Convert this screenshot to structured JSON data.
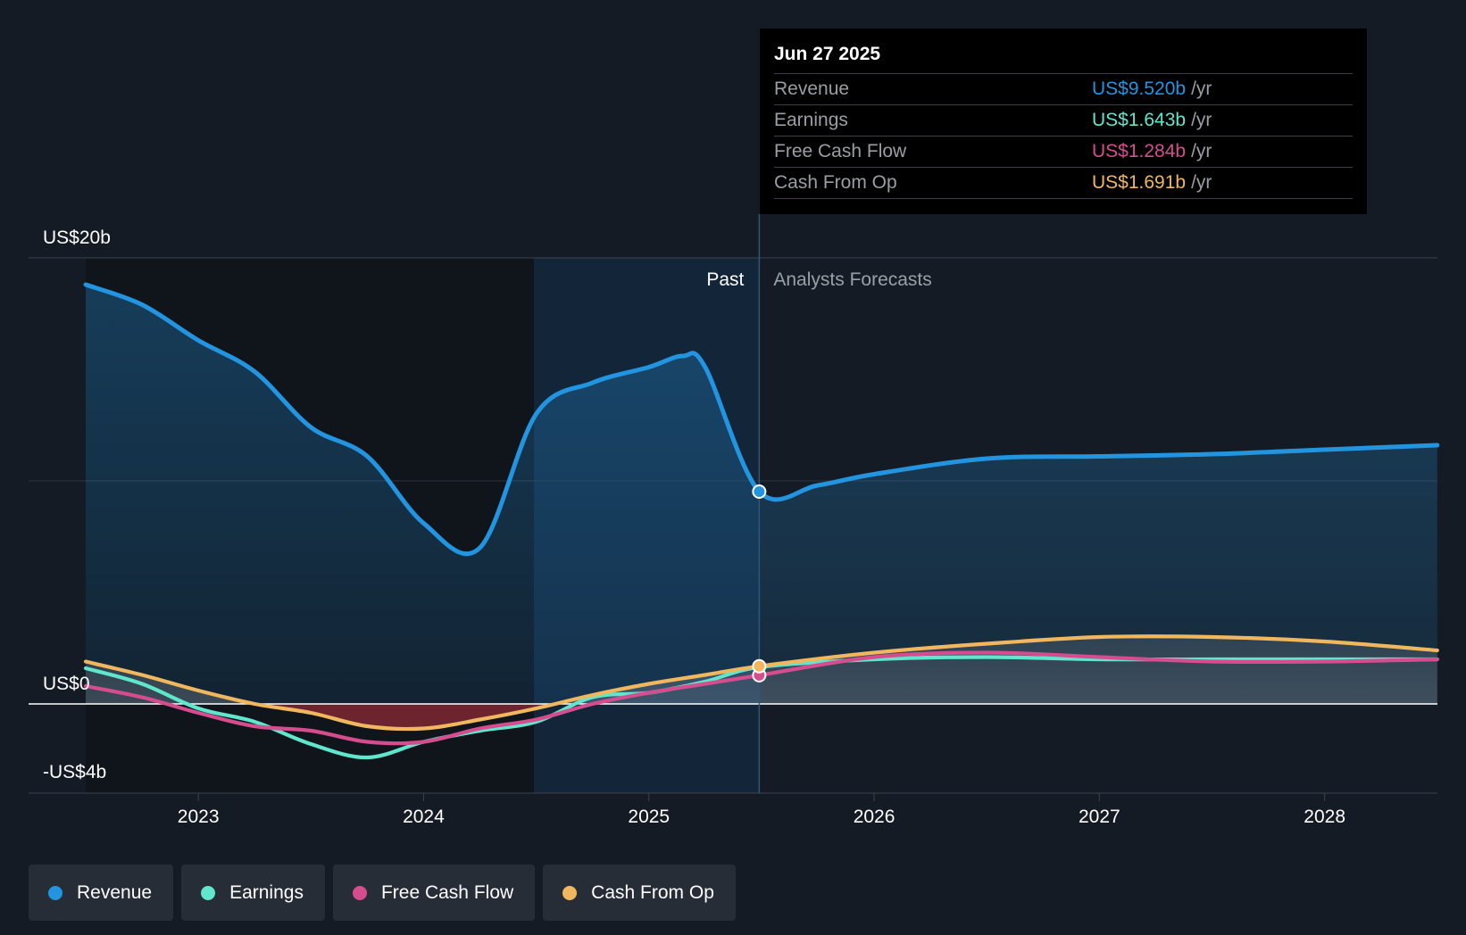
{
  "chart_data": {
    "type": "line",
    "x_unit": "year",
    "y_unit": "US$ billions",
    "ylim": [
      -4,
      20
    ],
    "xlim": [
      2022.5,
      2028.5
    ],
    "y_tick_labels": [
      {
        "value": 20,
        "label": "US$20b"
      },
      {
        "value": 0,
        "label": "US$0"
      },
      {
        "value": -4,
        "label": "-US$4b"
      }
    ],
    "y_gridline_at": 10,
    "x_tick_labels": [
      {
        "value": 2023,
        "label": "2023"
      },
      {
        "value": 2024,
        "label": "2024"
      },
      {
        "value": 2025,
        "label": "2025"
      },
      {
        "value": 2026,
        "label": "2026"
      },
      {
        "value": 2027,
        "label": "2027"
      },
      {
        "value": 2028,
        "label": "2028"
      }
    ],
    "past_label": "Past",
    "forecast_label": "Analysts Forecasts",
    "present_x": 2025.49,
    "highlight_start_x": 2024.49,
    "series": [
      {
        "name": "Revenue",
        "color": "#2394df",
        "points": [
          [
            2022.5,
            18.8
          ],
          [
            2022.75,
            17.9
          ],
          [
            2023.0,
            16.3
          ],
          [
            2023.25,
            14.9
          ],
          [
            2023.5,
            12.4
          ],
          [
            2023.75,
            11.1
          ],
          [
            2024.0,
            8.1
          ],
          [
            2024.25,
            7.0
          ],
          [
            2024.5,
            13.0
          ],
          [
            2024.75,
            14.4
          ],
          [
            2025.0,
            15.1
          ],
          [
            2025.15,
            15.6
          ],
          [
            2025.25,
            15.1
          ],
          [
            2025.49,
            9.52
          ],
          [
            2025.75,
            9.8
          ],
          [
            2026.0,
            10.3
          ],
          [
            2026.5,
            11.0
          ],
          [
            2027.0,
            11.1
          ],
          [
            2027.5,
            11.2
          ],
          [
            2028.0,
            11.4
          ],
          [
            2028.5,
            11.6
          ]
        ]
      },
      {
        "name": "Earnings",
        "color": "#5fe6cd",
        "points": [
          [
            2022.5,
            1.6
          ],
          [
            2022.75,
            0.9
          ],
          [
            2023.0,
            -0.2
          ],
          [
            2023.25,
            -0.8
          ],
          [
            2023.5,
            -1.8
          ],
          [
            2023.75,
            -2.4
          ],
          [
            2024.0,
            -1.7
          ],
          [
            2024.25,
            -1.2
          ],
          [
            2024.5,
            -0.8
          ],
          [
            2024.75,
            0.3
          ],
          [
            2025.0,
            0.5
          ],
          [
            2025.25,
            1.0
          ],
          [
            2025.49,
            1.643
          ],
          [
            2026.0,
            2.0
          ],
          [
            2026.5,
            2.1
          ],
          [
            2027.0,
            2.0
          ],
          [
            2027.5,
            2.0
          ],
          [
            2028.0,
            2.0
          ],
          [
            2028.5,
            2.0
          ]
        ]
      },
      {
        "name": "Free Cash Flow",
        "color": "#d64d8f",
        "points": [
          [
            2022.5,
            0.8
          ],
          [
            2022.75,
            0.3
          ],
          [
            2023.0,
            -0.4
          ],
          [
            2023.25,
            -1.0
          ],
          [
            2023.5,
            -1.2
          ],
          [
            2023.75,
            -1.7
          ],
          [
            2024.0,
            -1.7
          ],
          [
            2024.25,
            -1.1
          ],
          [
            2024.5,
            -0.7
          ],
          [
            2024.75,
            0.0
          ],
          [
            2025.0,
            0.5
          ],
          [
            2025.25,
            0.9
          ],
          [
            2025.49,
            1.284
          ],
          [
            2026.0,
            2.1
          ],
          [
            2026.5,
            2.3
          ],
          [
            2027.0,
            2.1
          ],
          [
            2027.5,
            1.9
          ],
          [
            2028.0,
            1.9
          ],
          [
            2028.5,
            2.0
          ]
        ]
      },
      {
        "name": "Cash From Op",
        "color": "#f0b75f",
        "points": [
          [
            2022.5,
            1.9
          ],
          [
            2022.75,
            1.3
          ],
          [
            2023.0,
            0.6
          ],
          [
            2023.25,
            0.0
          ],
          [
            2023.5,
            -0.4
          ],
          [
            2023.75,
            -1.0
          ],
          [
            2024.0,
            -1.1
          ],
          [
            2024.25,
            -0.7
          ],
          [
            2024.5,
            -0.2
          ],
          [
            2024.75,
            0.4
          ],
          [
            2025.0,
            0.9
          ],
          [
            2025.25,
            1.3
          ],
          [
            2025.49,
            1.691
          ],
          [
            2026.0,
            2.3
          ],
          [
            2026.5,
            2.7
          ],
          [
            2027.0,
            3.0
          ],
          [
            2027.5,
            3.0
          ],
          [
            2028.0,
            2.8
          ],
          [
            2028.5,
            2.4
          ]
        ]
      }
    ]
  },
  "tooltip": {
    "date": "Jun 27 2025",
    "rows": [
      {
        "label": "Revenue",
        "value": "US$9.520b",
        "unit": "/yr",
        "color": "#2394df"
      },
      {
        "label": "Earnings",
        "value": "US$1.643b",
        "unit": "/yr",
        "color": "#5fe6cd"
      },
      {
        "label": "Free Cash Flow",
        "value": "US$1.284b",
        "unit": "/yr",
        "color": "#d64d8f"
      },
      {
        "label": "Cash From Op",
        "value": "US$1.691b",
        "unit": "/yr",
        "color": "#f0b75f"
      }
    ]
  },
  "legend": [
    {
      "label": "Revenue",
      "color": "#2394df"
    },
    {
      "label": "Earnings",
      "color": "#5fe6cd"
    },
    {
      "label": "Free Cash Flow",
      "color": "#d64d8f"
    },
    {
      "label": "Cash From Op",
      "color": "#f0b75f"
    }
  ]
}
